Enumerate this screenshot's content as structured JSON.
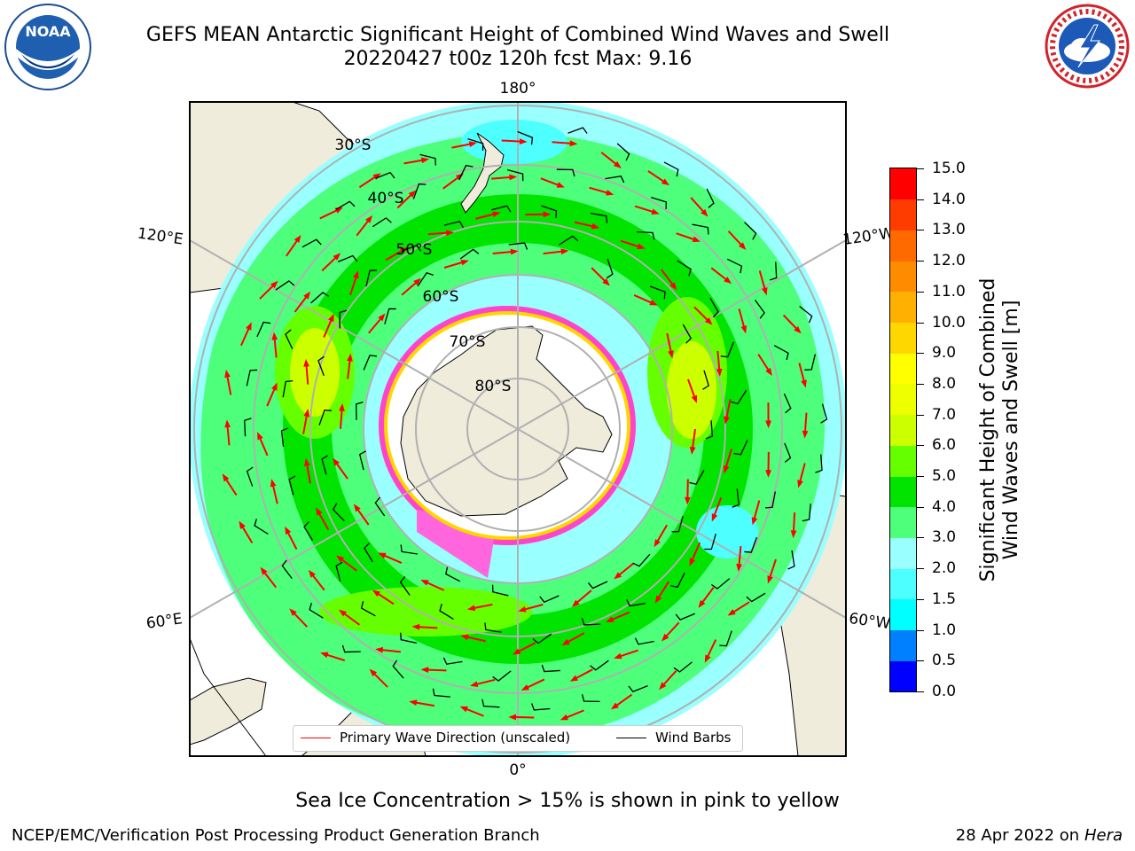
{
  "title": "GEFS MEAN Antarctic Significant Height of Combined Wind Waves and Swell",
  "subtitle": "20220427 t00z 120h fcst   Max: 9.16",
  "map": {
    "projection": "south polar stereographic",
    "longitude_labels": [
      "180°",
      "120°E",
      "120°W",
      "60°E",
      "60°W",
      "0°"
    ],
    "latitude_labels": [
      "30°S",
      "40°S",
      "50°S",
      "60°S",
      "70°S",
      "80°S"
    ],
    "colors": {
      "land": "#efecdb",
      "ocean_low": "#99ffff",
      "ocean_mid": "#4dff7a",
      "ocean_high": "#00e400",
      "peak": "#ccff00",
      "ice": "#ff44cc",
      "arrow": "#ff0000",
      "barb": "#000000"
    }
  },
  "colorbar": {
    "label": "Significant Height of Combined Wind Waves and Swell [m]",
    "label_line1": "Significant Height of Combined",
    "label_line2": "Wind Waves and Swell [m]",
    "ticks": [
      "15.0",
      "14.0",
      "13.0",
      "12.0",
      "11.0",
      "10.0",
      "9.0",
      "8.0",
      "7.0",
      "6.0",
      "5.0",
      "4.0",
      "3.0",
      "2.0",
      "1.5",
      "1.0",
      "0.5",
      "0.0"
    ],
    "colors": [
      "#0000ff",
      "#0080ff",
      "#00ffff",
      "#4dffff",
      "#99ffff",
      "#4dff7a",
      "#00e400",
      "#66ff00",
      "#ccff00",
      "#eeff00",
      "#ffff00",
      "#ffd700",
      "#ffb000",
      "#ff8c00",
      "#ff6a00",
      "#ff3c00",
      "#ff0000"
    ]
  },
  "legend": {
    "items": [
      {
        "label": "Primary Wave Direction (unscaled)",
        "color": "#ff0000"
      },
      {
        "label": "Wind Barbs",
        "color": "#000000"
      }
    ]
  },
  "footer": {
    "sea_ice_note": "Sea Ice Concentration > 15% is shown in pink to yellow",
    "credit": "NCEP/EMC/Verification Post Processing Product Generation Branch",
    "date_prefix": "28 Apr 2022 on ",
    "machine": "Hera"
  },
  "logos": {
    "noaa_text": "NOAA",
    "nws_text": "NATIONAL WEATHER SERVICE"
  }
}
